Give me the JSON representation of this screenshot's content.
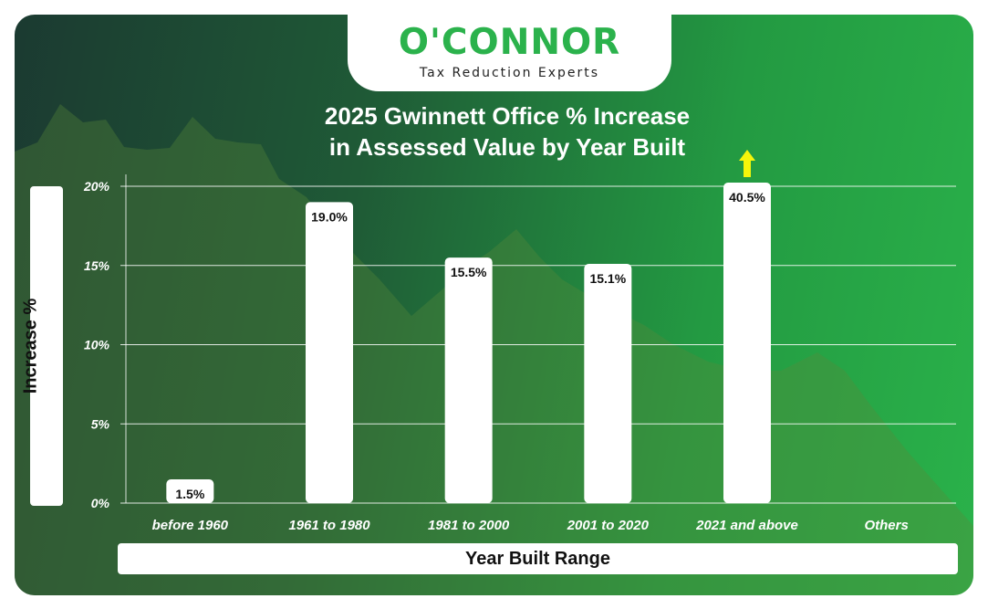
{
  "brand": {
    "wordmark": "O'CONNOR",
    "tagline": "Tax Reduction Experts",
    "color": "#2bb24c"
  },
  "chart_data": {
    "type": "bar",
    "title_lines": [
      "2025 Gwinnett Office % Increase",
      "in Assessed Value by Year Built"
    ],
    "xlabel": "Year Built Range",
    "ylabel": "Increase %",
    "categories": [
      "before 1960",
      "1961 to 1980",
      "1981 to 2000",
      "2001 to 2020",
      "2021 and above",
      "Others"
    ],
    "values": [
      1.5,
      19.0,
      15.5,
      15.1,
      40.5,
      null
    ],
    "data_labels": [
      "1.5%",
      "19.0%",
      "15.5%",
      "15.1%",
      "40.5%",
      ""
    ],
    "ylim": [
      0,
      20
    ],
    "yticks": [
      0,
      5,
      10,
      15,
      20
    ],
    "ytick_labels": [
      "0%",
      "5%",
      "10%",
      "15%",
      "20%"
    ],
    "grid": true,
    "bar_color": "#ffffff",
    "overflow_arrow_color": "#f5f50a",
    "overflow_indicator": "value exceeds axis maximum"
  }
}
